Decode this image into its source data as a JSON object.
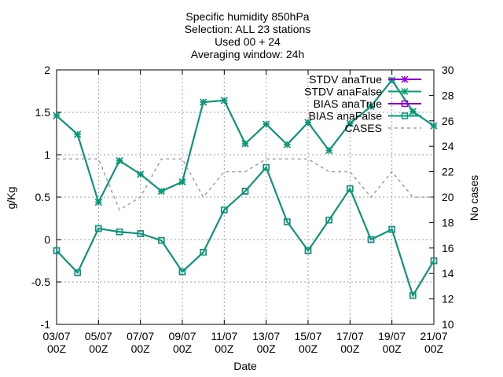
{
  "chart_data": {
    "type": "line",
    "title_lines": [
      "Specific humidity 850hPa",
      "Selection: ALL      23 stations",
      "Used 00 + 24",
      "Averaging window: 24h"
    ],
    "xlabel": "Date",
    "ylabel": "g/Kg",
    "y2label": "No cases",
    "x_ticks": [
      {
        "d": "03/07",
        "h": "00Z"
      },
      {
        "d": "05/07",
        "h": "00Z"
      },
      {
        "d": "07/07",
        "h": "00Z"
      },
      {
        "d": "09/07",
        "h": "00Z"
      },
      {
        "d": "11/07",
        "h": "00Z"
      },
      {
        "d": "13/07",
        "h": "00Z"
      },
      {
        "d": "15/07",
        "h": "00Z"
      },
      {
        "d": "17/07",
        "h": "00Z"
      },
      {
        "d": "19/07",
        "h": "00Z"
      },
      {
        "d": "21/07",
        "h": "00Z"
      }
    ],
    "x_days": [
      3,
      4,
      5,
      6,
      7,
      8,
      9,
      10,
      11,
      12,
      13,
      14,
      15,
      16,
      17,
      18,
      19,
      20,
      21
    ],
    "xlim": [
      3,
      21
    ],
    "ylim": [
      -1,
      2
    ],
    "y_ticks": [
      "-1",
      "-0.5",
      "0",
      "0.5",
      "1",
      "1.5",
      "2"
    ],
    "y2lim": [
      10,
      30
    ],
    "y2_ticks": [
      "10",
      "12",
      "14",
      "16",
      "18",
      "20",
      "22",
      "24",
      "26",
      "28",
      "30"
    ],
    "legend_position": "top-right",
    "series": [
      {
        "name": "STDV anaTrue",
        "axis": "y1",
        "color": "#9400d3",
        "marker": "star",
        "dashed": false,
        "values": [
          1.46,
          1.24,
          0.44,
          0.93,
          0.77,
          0.57,
          0.68,
          1.62,
          1.64,
          1.13,
          1.36,
          1.12,
          1.38,
          1.05,
          1.37,
          1.57,
          1.88,
          1.51,
          1.34
        ]
      },
      {
        "name": "STDV anaFalse",
        "axis": "y1",
        "color": "#009e73",
        "marker": "star",
        "dashed": false,
        "values": [
          1.46,
          1.24,
          0.44,
          0.93,
          0.77,
          0.57,
          0.68,
          1.62,
          1.64,
          1.13,
          1.36,
          1.12,
          1.38,
          1.05,
          1.37,
          1.57,
          1.88,
          1.51,
          1.34
        ]
      },
      {
        "name": "BIAS anaTrue",
        "axis": "y1",
        "color": "#9400d3",
        "marker": "square",
        "dashed": false,
        "values": [
          -0.13,
          -0.39,
          0.13,
          0.09,
          0.07,
          -0.01,
          -0.38,
          -0.15,
          0.35,
          0.57,
          0.85,
          0.21,
          -0.13,
          0.23,
          0.6,
          0.0,
          0.12,
          -0.66,
          -0.25
        ]
      },
      {
        "name": "BIAS anaFalse",
        "axis": "y1",
        "color": "#009e73",
        "marker": "square",
        "dashed": false,
        "values": [
          -0.13,
          -0.39,
          0.13,
          0.09,
          0.07,
          -0.01,
          -0.38,
          -0.15,
          0.35,
          0.57,
          0.85,
          0.21,
          -0.13,
          0.23,
          0.6,
          0.0,
          0.12,
          -0.66,
          -0.25
        ]
      },
      {
        "name": "CASES",
        "axis": "y2",
        "color": "#a0a0a0",
        "marker": "none",
        "dashed": true,
        "values": [
          23,
          23,
          23,
          19,
          20,
          23,
          23,
          20,
          22,
          22,
          23,
          23,
          23,
          22,
          22,
          20,
          22,
          20,
          20
        ]
      }
    ]
  }
}
